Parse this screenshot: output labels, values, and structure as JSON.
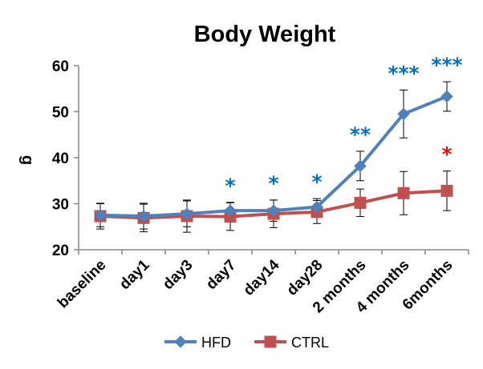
{
  "chart_data": {
    "type": "line",
    "title": "Body Weight",
    "xlabel": "",
    "ylabel": "g",
    "ylim": [
      20,
      60
    ],
    "yticks": [
      20,
      30,
      40,
      50,
      60
    ],
    "categories": [
      "baseline",
      "day1",
      "day3",
      "day7",
      "day14",
      "day28",
      "2 months",
      "4 months",
      "6months"
    ],
    "series": [
      {
        "name": "HFD",
        "color": "#4f81bd",
        "marker": "diamond",
        "values": [
          27.5,
          27.3,
          27.8,
          28.5,
          28.5,
          29.3,
          38.2,
          49.5,
          53.3
        ],
        "error": [
          2.5,
          2.8,
          2.8,
          1.8,
          2.3,
          1.8,
          3.2,
          5.2,
          3.2
        ]
      },
      {
        "name": "CTRL",
        "color": "#c0504d",
        "marker": "square",
        "values": [
          27.3,
          26.9,
          27.3,
          27.2,
          27.8,
          28.2,
          30.2,
          32.3,
          32.8
        ],
        "error": [
          2.8,
          3.0,
          3.5,
          3.0,
          3.0,
          2.5,
          3.0,
          4.7,
          4.3
        ]
      }
    ],
    "significance": [
      {
        "category": "day7",
        "series": "HFD",
        "label": "*",
        "color": "#0070c0"
      },
      {
        "category": "day14",
        "series": "HFD",
        "label": "*",
        "color": "#0070c0"
      },
      {
        "category": "day28",
        "series": "HFD",
        "label": "*",
        "color": "#0070c0"
      },
      {
        "category": "2 months",
        "series": "HFD",
        "label": "**",
        "color": "#0070c0"
      },
      {
        "category": "4 months",
        "series": "HFD",
        "label": "***",
        "color": "#0070c0"
      },
      {
        "category": "6months",
        "series": "HFD",
        "label": "***",
        "color": "#0070c0"
      },
      {
        "category": "6months",
        "series": "CTRL",
        "label": "*",
        "color": "#ff0000"
      }
    ],
    "grid": false,
    "legend_position": "bottom"
  }
}
